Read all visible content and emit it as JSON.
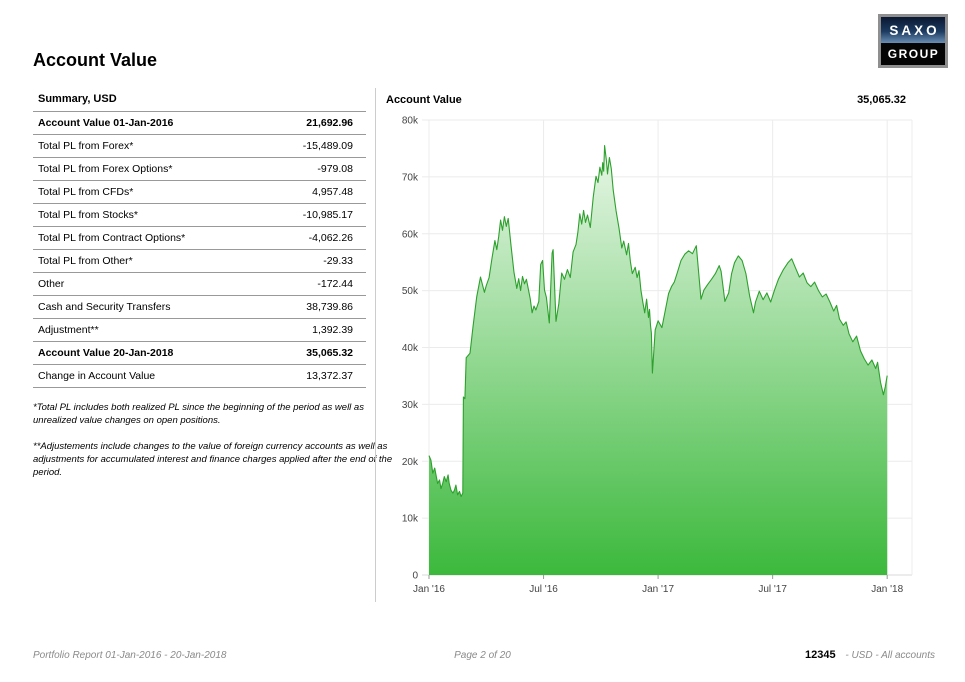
{
  "page": {
    "title": "Account Value",
    "logo": {
      "top": "SAXO",
      "bottom": "GROUP"
    }
  },
  "summary": {
    "header": "Summary, USD",
    "rows": [
      {
        "label": "Account Value 01-Jan-2016",
        "value": "21,692.96",
        "bold": true
      },
      {
        "label": "Total PL from Forex*",
        "value": "-15,489.09",
        "bold": false
      },
      {
        "label": "Total PL from Forex  Options*",
        "value": "-979.08",
        "bold": false
      },
      {
        "label": "Total PL from CFDs*",
        "value": "4,957.48",
        "bold": false
      },
      {
        "label": "Total PL from Stocks*",
        "value": "-10,985.17",
        "bold": false
      },
      {
        "label": "Total PL from Contract Options*",
        "value": "-4,062.26",
        "bold": false
      },
      {
        "label": "Total PL from Other*",
        "value": "-29.33",
        "bold": false
      },
      {
        "label": "Other",
        "value": "-172.44",
        "bold": false
      },
      {
        "label": "Cash and Security Transfers",
        "value": "38,739.86",
        "bold": false
      },
      {
        "label": "Adjustment**",
        "value": "1,392.39",
        "bold": false
      },
      {
        "label": "Account Value 20-Jan-2018",
        "value": "35,065.32",
        "bold": true
      },
      {
        "label": "Change in Account Value",
        "value": "13,372.37",
        "bold": false
      }
    ],
    "footnotes": [
      "*Total PL includes both realized PL  since the beginning of the period as well as unrealized value changes on open positions.",
      "**Adjustements include changes to the value of foreign currency accounts as well as adjustments for accumulated interest and finance charges applied after the end of the period."
    ]
  },
  "chart": {
    "title": "Account Value",
    "current_value": "35,065.32"
  },
  "chart_data": {
    "type": "area",
    "title": "Account Value",
    "unit": "USD",
    "xlabel": "",
    "ylabel": "",
    "x_unit": "months since 01-Jan-2016",
    "xlim": [
      0,
      25.3
    ],
    "ylim": [
      0,
      80000
    ],
    "grid": true,
    "legend": false,
    "line_color": "#2da02d",
    "fill_top": "#f2faf1",
    "fill_bottom": "#3cb93c",
    "x_ticks": [
      {
        "t": 0,
        "label": "Jan '16"
      },
      {
        "t": 6,
        "label": "Jul '16"
      },
      {
        "t": 12,
        "label": "Jan '17"
      },
      {
        "t": 18,
        "label": "Jul '17"
      },
      {
        "t": 24,
        "label": "Jan '18"
      }
    ],
    "y_ticks": [
      {
        "v": 0,
        "label": "0"
      },
      {
        "v": 10000,
        "label": "10k"
      },
      {
        "v": 20000,
        "label": "20k"
      },
      {
        "v": 30000,
        "label": "30k"
      },
      {
        "v": 40000,
        "label": "40k"
      },
      {
        "v": 50000,
        "label": "50k"
      },
      {
        "v": 60000,
        "label": "60k"
      },
      {
        "v": 70000,
        "label": "70k"
      },
      {
        "v": 80000,
        "label": "80k"
      }
    ],
    "points": [
      [
        0,
        21000
      ],
      [
        0.1,
        20200
      ],
      [
        0.2,
        17900
      ],
      [
        0.3,
        18800
      ],
      [
        0.45,
        16100
      ],
      [
        0.55,
        16700
      ],
      [
        0.63,
        15200
      ],
      [
        0.72,
        16100
      ],
      [
        0.8,
        17300
      ],
      [
        0.9,
        16400
      ],
      [
        1.0,
        17600
      ],
      [
        1.06,
        16100
      ],
      [
        1.15,
        14900
      ],
      [
        1.25,
        14400
      ],
      [
        1.33,
        14900
      ],
      [
        1.41,
        15800
      ],
      [
        1.5,
        14100
      ],
      [
        1.6,
        14700
      ],
      [
        1.68,
        13800
      ],
      [
        1.77,
        14400
      ],
      [
        1.8,
        31300
      ],
      [
        1.88,
        31000
      ],
      [
        1.95,
        38200
      ],
      [
        2.05,
        38600
      ],
      [
        2.15,
        39000
      ],
      [
        2.3,
        43500
      ],
      [
        2.5,
        48900
      ],
      [
        2.7,
        52400
      ],
      [
        2.8,
        51000
      ],
      [
        2.9,
        49700
      ],
      [
        3.0,
        50900
      ],
      [
        3.15,
        52300
      ],
      [
        3.3,
        55700
      ],
      [
        3.45,
        58800
      ],
      [
        3.55,
        57200
      ],
      [
        3.65,
        59500
      ],
      [
        3.75,
        62400
      ],
      [
        3.85,
        60600
      ],
      [
        3.95,
        63000
      ],
      [
        4.05,
        61300
      ],
      [
        4.15,
        62700
      ],
      [
        4.3,
        57800
      ],
      [
        4.45,
        53200
      ],
      [
        4.6,
        50400
      ],
      [
        4.7,
        52100
      ],
      [
        4.8,
        50000
      ],
      [
        4.9,
        52500
      ],
      [
        5.0,
        51200
      ],
      [
        5.1,
        52000
      ],
      [
        5.2,
        50300
      ],
      [
        5.3,
        48600
      ],
      [
        5.4,
        46100
      ],
      [
        5.5,
        47300
      ],
      [
        5.6,
        46600
      ],
      [
        5.75,
        48100
      ],
      [
        5.85,
        54600
      ],
      [
        5.95,
        55300
      ],
      [
        6.05,
        50100
      ],
      [
        6.15,
        48800
      ],
      [
        6.3,
        44300
      ],
      [
        6.45,
        56600
      ],
      [
        6.5,
        57200
      ],
      [
        6.65,
        44600
      ],
      [
        6.8,
        47700
      ],
      [
        6.95,
        53100
      ],
      [
        7.1,
        52000
      ],
      [
        7.25,
        53700
      ],
      [
        7.4,
        52300
      ],
      [
        7.55,
        56800
      ],
      [
        7.7,
        58100
      ],
      [
        7.8,
        60300
      ],
      [
        7.9,
        63500
      ],
      [
        8.0,
        61700
      ],
      [
        8.1,
        64100
      ],
      [
        8.2,
        62000
      ],
      [
        8.3,
        63300
      ],
      [
        8.45,
        61100
      ],
      [
        8.6,
        66400
      ],
      [
        8.75,
        70100
      ],
      [
        8.85,
        69000
      ],
      [
        8.95,
        71700
      ],
      [
        9.05,
        70300
      ],
      [
        9.1,
        72500
      ],
      [
        9.15,
        71000
      ],
      [
        9.2,
        75500
      ],
      [
        9.3,
        72700
      ],
      [
        9.35,
        70500
      ],
      [
        9.45,
        73400
      ],
      [
        9.55,
        71400
      ],
      [
        9.65,
        67700
      ],
      [
        9.8,
        64000
      ],
      [
        9.95,
        61000
      ],
      [
        10.1,
        57500
      ],
      [
        10.2,
        58700
      ],
      [
        10.35,
        56300
      ],
      [
        10.45,
        58300
      ],
      [
        10.55,
        55100
      ],
      [
        10.65,
        53000
      ],
      [
        10.8,
        54100
      ],
      [
        10.9,
        52300
      ],
      [
        11.0,
        53500
      ],
      [
        11.1,
        50100
      ],
      [
        11.2,
        48000
      ],
      [
        11.3,
        46100
      ],
      [
        11.4,
        48500
      ],
      [
        11.5,
        45300
      ],
      [
        11.55,
        46700
      ],
      [
        11.6,
        43900
      ],
      [
        11.65,
        42500
      ],
      [
        11.7,
        35500
      ],
      [
        11.85,
        43100
      ],
      [
        12.0,
        44700
      ],
      [
        12.2,
        43500
      ],
      [
        12.4,
        46900
      ],
      [
        12.55,
        49500
      ],
      [
        12.7,
        50700
      ],
      [
        12.85,
        51500
      ],
      [
        13.0,
        53100
      ],
      [
        13.2,
        55300
      ],
      [
        13.4,
        56400
      ],
      [
        13.6,
        57000
      ],
      [
        13.8,
        56500
      ],
      [
        14.0,
        57900
      ],
      [
        14.1,
        54100
      ],
      [
        14.25,
        48500
      ],
      [
        14.4,
        50100
      ],
      [
        14.6,
        51100
      ],
      [
        14.8,
        52000
      ],
      [
        15.0,
        53000
      ],
      [
        15.2,
        54400
      ],
      [
        15.3,
        53400
      ],
      [
        15.5,
        48100
      ],
      [
        15.7,
        49600
      ],
      [
        15.85,
        53000
      ],
      [
        16.0,
        54900
      ],
      [
        16.2,
        56100
      ],
      [
        16.4,
        55300
      ],
      [
        16.6,
        53000
      ],
      [
        16.8,
        49000
      ],
      [
        17.0,
        46100
      ],
      [
        17.1,
        48000
      ],
      [
        17.3,
        49900
      ],
      [
        17.5,
        48400
      ],
      [
        17.7,
        49600
      ],
      [
        17.9,
        48000
      ],
      [
        18.1,
        50100
      ],
      [
        18.3,
        52000
      ],
      [
        18.55,
        53600
      ],
      [
        18.8,
        54900
      ],
      [
        19.0,
        55600
      ],
      [
        19.2,
        54000
      ],
      [
        19.4,
        52400
      ],
      [
        19.6,
        53100
      ],
      [
        19.8,
        51400
      ],
      [
        20.0,
        50700
      ],
      [
        20.2,
        51500
      ],
      [
        20.4,
        50000
      ],
      [
        20.6,
        48900
      ],
      [
        20.8,
        49400
      ],
      [
        21.0,
        48000
      ],
      [
        21.2,
        46400
      ],
      [
        21.35,
        47400
      ],
      [
        21.5,
        45000
      ],
      [
        21.7,
        43900
      ],
      [
        21.85,
        44500
      ],
      [
        22.0,
        42400
      ],
      [
        22.2,
        41000
      ],
      [
        22.4,
        42000
      ],
      [
        22.6,
        39400
      ],
      [
        22.8,
        38000
      ],
      [
        23.0,
        36900
      ],
      [
        23.2,
        37800
      ],
      [
        23.4,
        36300
      ],
      [
        23.5,
        37400
      ],
      [
        23.65,
        33900
      ],
      [
        23.8,
        31700
      ],
      [
        23.9,
        33100
      ],
      [
        24.0,
        35065.32
      ]
    ]
  },
  "footer": {
    "left": "Portfolio Report 01-Jan-2016 - 20-Jan-2018",
    "center": "Page 2 of 20",
    "account": "12345",
    "account_suffix": "- USD - All accounts"
  }
}
